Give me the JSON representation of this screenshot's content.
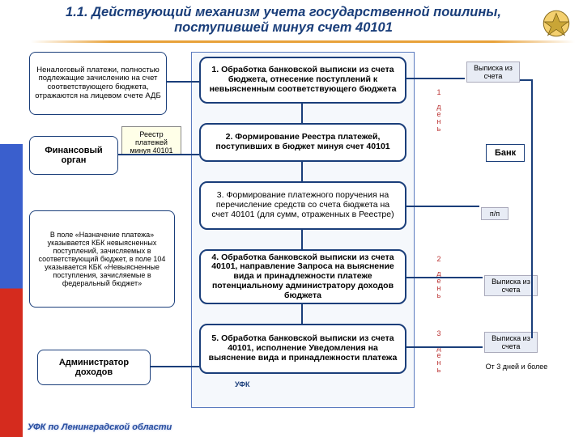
{
  "title": "1.1. Действующий механизм учета государственной пошлины, поступившей минуя счет 40101",
  "colors": {
    "title": "#1a3e7a",
    "box_border": "#1a3e7a",
    "underline": "#e8a23a",
    "flag_white": "#ffffff",
    "flag_blue": "#3a5fcd",
    "flag_red": "#d52b1e",
    "callout_bg": "#ffffe8",
    "day_text": "#b33333"
  },
  "left": {
    "note_top": "Неналоговый платежи, полностью подлежащие зачислению на счет соответствующего бюджета, отражаются на лицевом счете АДБ",
    "fin_organ": "Финансовый орган",
    "reestr_callout": "Реестр платежей минуя 40101",
    "note_mid": "В поле «Назначение платежа» указывается КБК невыясненных поступлений, зачисляемых в соответствующий бюджет, в поле 104 указывается КБК «Невыясненные поступления, зачисляемые в федеральный бюджет»",
    "admin": "Администратор доходов"
  },
  "steps": {
    "s1": "1. Обработка банковской выписки из счета бюджета, отнесение поступлений к невыясненным соответствующего бюджета",
    "s2": "2. Формирование Реестра платежей, поступивших в бюджет минуя счет 40101",
    "s3": "3. Формирование платежного поручения на перечисление средств со счета бюджета на счет 40101 (для сумм, отраженных в Реестре)",
    "s4": "4. Обработка банковской выписки из счета 40101, направление Запроса на выяснение вида и принадлежности платеже потенциальному администратору доходов бюджета",
    "s5": "5. Обработка банковской выписки из счета 40101, исполнение Уведомления на выяснение вида и принадлежности платежа"
  },
  "right": {
    "vypiska": "Выписка из счета",
    "bank": "Банк",
    "pp": "п/п",
    "day1": "1 день",
    "day2": "2 день",
    "day3": "3 день",
    "from3days": "От 3 дней и более"
  },
  "ufk": "УФК",
  "footer": "УФК по Ленинградской области"
}
